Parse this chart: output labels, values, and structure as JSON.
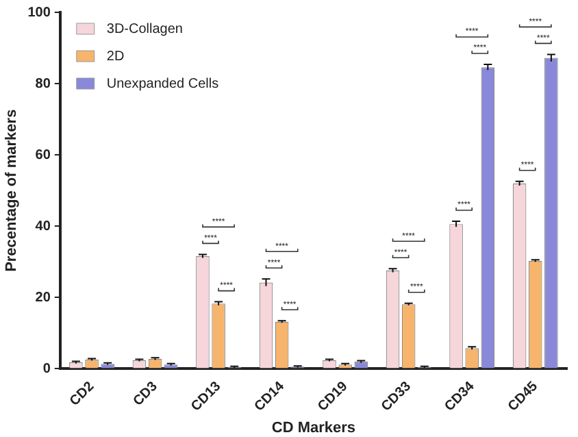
{
  "chart_data": {
    "type": "bar",
    "xlabel": "CD Markers",
    "ylabel": "Precentage of markers",
    "categories": [
      "CD2",
      "CD3",
      "CD13",
      "CD14",
      "CD19",
      "CD33",
      "CD34",
      "CD45"
    ],
    "series": [
      {
        "name": "3D-Collagen",
        "color": "#f6d6da",
        "values": [
          1.8,
          2.4,
          31.6,
          24.2,
          2.4,
          27.6,
          40.6,
          52.0
        ],
        "errors": [
          0.3,
          0.3,
          0.5,
          1.0,
          0.3,
          0.5,
          0.8,
          0.6
        ]
      },
      {
        "name": "2D",
        "color": "#f7b46c",
        "values": [
          2.6,
          2.8,
          18.3,
          13.2,
          1.2,
          18.1,
          5.8,
          30.3
        ],
        "errors": [
          0.3,
          0.3,
          0.5,
          0.3,
          0.3,
          0.3,
          0.4,
          0.3
        ]
      },
      {
        "name": "Unexpanded Cells",
        "color": "#8a88d8",
        "values": [
          1.4,
          1.2,
          0.5,
          0.6,
          2.0,
          0.5,
          84.6,
          87.2
        ],
        "errors": [
          0.3,
          0.3,
          0.2,
          0.2,
          0.3,
          0.2,
          0.8,
          1.0
        ]
      }
    ],
    "ylim": [
      0,
      100
    ],
    "yticks": [
      0,
      20,
      40,
      60,
      80,
      100
    ],
    "grid": false,
    "legend": "top left",
    "annotations": [
      "****",
      "****",
      "****",
      "****",
      "****",
      "****",
      "****",
      "****",
      "****",
      "****",
      "****",
      "****",
      "****",
      "****",
      "****"
    ]
  }
}
